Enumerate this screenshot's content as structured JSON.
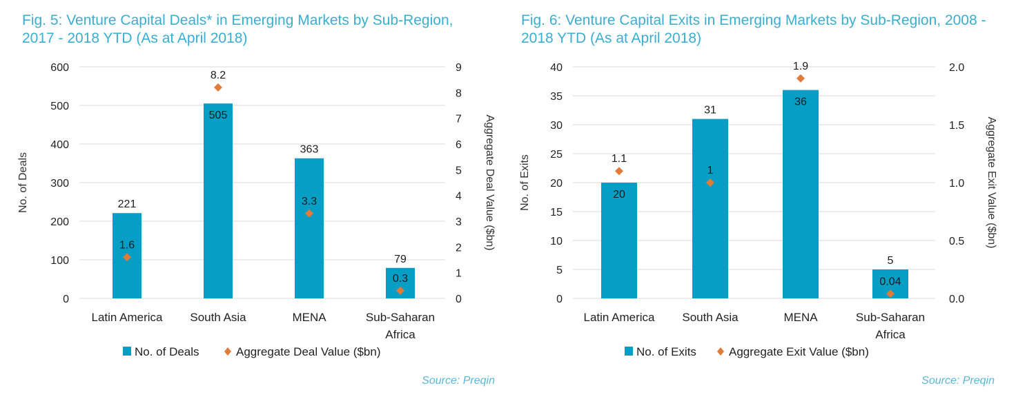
{
  "colors": {
    "title": "#3aaed0",
    "bar": "#069ec4",
    "marker": "#e07b39",
    "source": "#5ab7d6",
    "grid": "#d9d9d9"
  },
  "chart_data": [
    {
      "type": "bar",
      "title": "Fig. 5: Venture Capital Deals* in Emerging Markets by Sub-Region, 2017 - 2018 YTD (As at April 2018)",
      "categories": [
        "Latin America",
        "South Asia",
        "MENA",
        "Sub-Saharan Africa"
      ],
      "category_lines": [
        [
          "Latin America"
        ],
        [
          "South Asia"
        ],
        [
          "MENA"
        ],
        [
          "Sub-Saharan",
          "Africa"
        ]
      ],
      "series": [
        {
          "name": "No. of Deals",
          "kind": "bar",
          "axis": "left",
          "values": [
            221,
            505,
            363,
            79
          ],
          "labels": [
            "221",
            "505",
            "363",
            "79"
          ]
        },
        {
          "name": "Aggregate Deal Value ($bn)",
          "kind": "scatter",
          "marker": "diamond",
          "axis": "right",
          "values": [
            1.6,
            8.2,
            3.3,
            0.3
          ],
          "labels": [
            "1.6",
            "8.2",
            "3.3",
            "0.3"
          ]
        }
      ],
      "ylabel": "No. of Deals",
      "ylabel_right": "Aggregate Deal Value ($bn)",
      "ylim": [
        0,
        600
      ],
      "yticks": [
        "0",
        "100",
        "200",
        "300",
        "400",
        "500",
        "600"
      ],
      "ylim_right": [
        0,
        9
      ],
      "yticks_right": [
        "0",
        "1",
        "2",
        "3",
        "4",
        "5",
        "6",
        "7",
        "8",
        "9"
      ],
      "grid": true,
      "legend_position": "bottom-center",
      "source": "Source: Preqin"
    },
    {
      "type": "bar",
      "title": "Fig. 6: Venture Capital Exits in Emerging Markets by Sub-Region, 2008 - 2018 YTD (As at April 2018)",
      "categories": [
        "Latin America",
        "South Asia",
        "MENA",
        "Sub-Saharan Africa"
      ],
      "category_lines": [
        [
          "Latin America"
        ],
        [
          "South Asia"
        ],
        [
          "MENA"
        ],
        [
          "Sub-Saharan",
          "Africa"
        ]
      ],
      "series": [
        {
          "name": "No. of Exits",
          "kind": "bar",
          "axis": "left",
          "values": [
            20,
            31,
            36,
            5
          ],
          "labels": [
            "20",
            "31",
            "36",
            "5"
          ]
        },
        {
          "name": "Aggregate Exit Value ($bn)",
          "kind": "scatter",
          "marker": "diamond",
          "axis": "right",
          "values": [
            1.1,
            1.0,
            1.9,
            0.04
          ],
          "labels": [
            "1.1",
            "1",
            "1.9",
            "0.04"
          ]
        }
      ],
      "ylabel": "No. of Exits",
      "ylabel_right": "Aggregate Exit Value ($bn)",
      "ylim": [
        0,
        40
      ],
      "yticks": [
        "0",
        "5",
        "10",
        "15",
        "20",
        "25",
        "30",
        "35",
        "40"
      ],
      "ylim_right": [
        0,
        2.0
      ],
      "yticks_right": [
        "0.0",
        "0.5",
        "1.0",
        "1.5",
        "2.0"
      ],
      "grid": true,
      "legend_position": "bottom-center",
      "source": "Source: Preqin"
    }
  ]
}
